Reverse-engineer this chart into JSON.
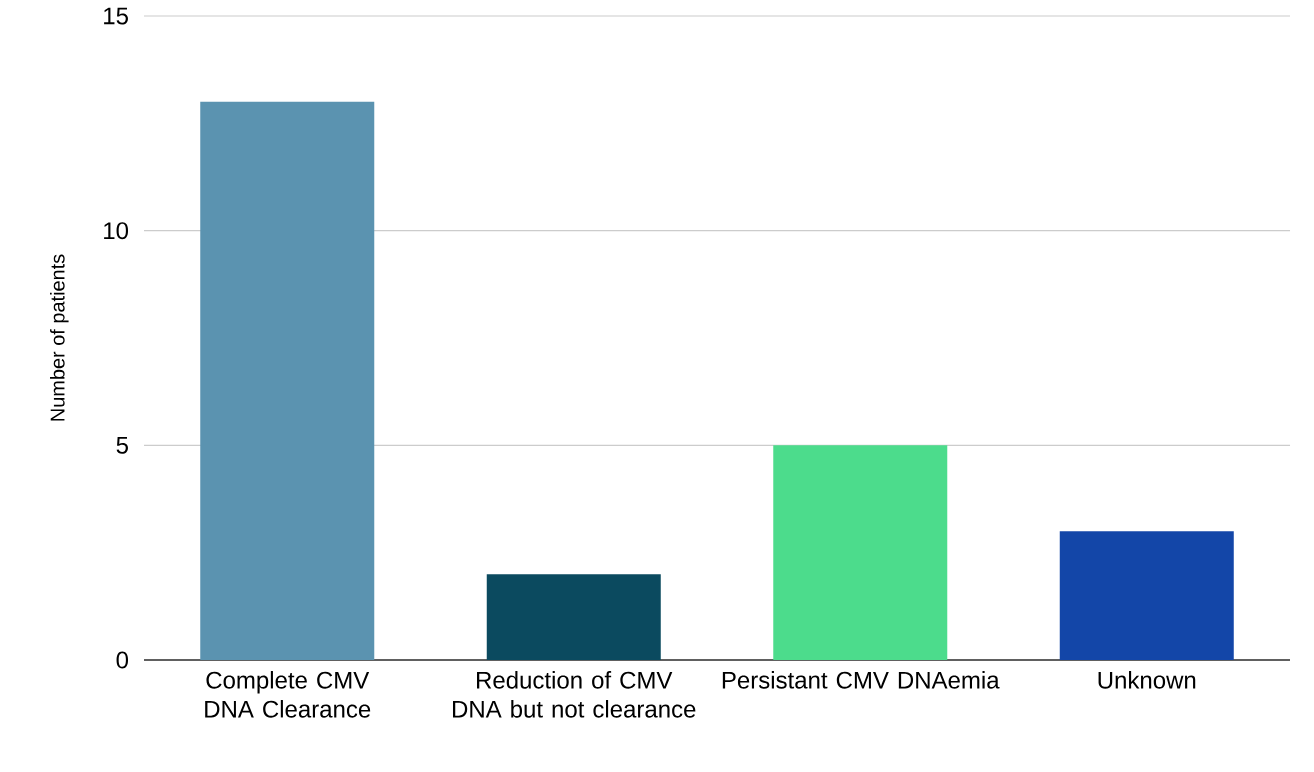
{
  "chart_data": {
    "type": "bar",
    "ylabel": "Number of patients",
    "categories": [
      "Complete CMV DNA Clearance",
      "Reduction of CMV DNA but not clearance",
      "Persistant CMV DNAemia",
      "Unknown"
    ],
    "values": [
      13,
      2,
      5,
      3
    ],
    "colors": [
      "#5b93b0",
      "#0b4a5f",
      "#4cdc8c",
      "#1346a8"
    ],
    "ylim": [
      0,
      15
    ],
    "yticks": [
      0,
      5,
      10,
      15
    ],
    "grid": "y"
  }
}
